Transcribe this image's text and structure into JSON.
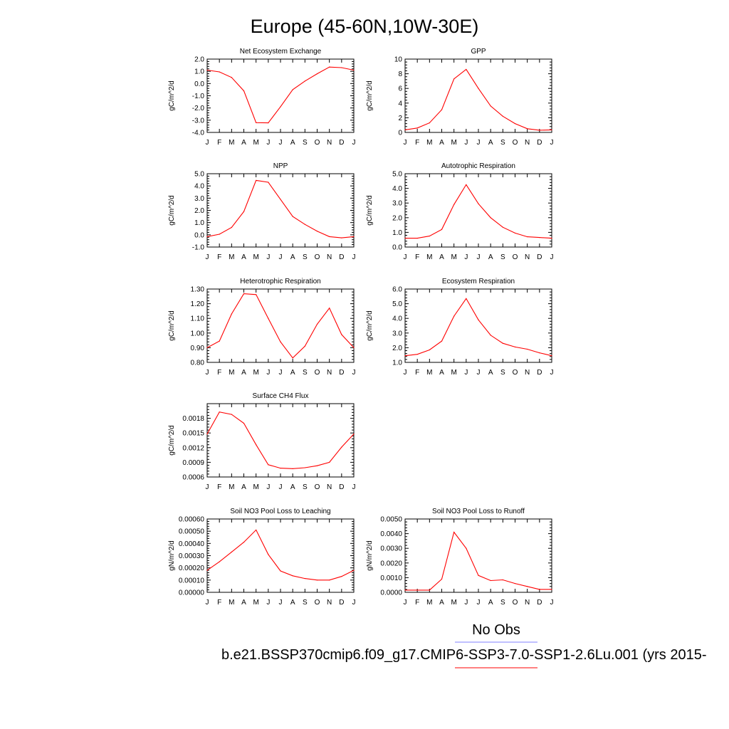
{
  "title": "Europe (45-60N,10W-30E)",
  "legend": {
    "obs_label": "No Obs",
    "obs_color": "#8080ff",
    "case_label": "b.e21.BSSP370cmip6.f09_g17.CMIP6-SSP3-7.0-SSP1-2.6Lu.001 (yrs 2015-",
    "case_color": "#ff0000"
  },
  "colors": {
    "series": "#ff0000",
    "axis": "#000000"
  },
  "chart_data": [
    {
      "type": "line",
      "title": "Net Ecosystem Exchange",
      "ylabel": "gC/m^2/d",
      "categories": [
        "J",
        "F",
        "M",
        "A",
        "M",
        "J",
        "J",
        "A",
        "S",
        "O",
        "N",
        "D",
        "J"
      ],
      "values": [
        1.1,
        0.95,
        0.5,
        -0.6,
        -3.2,
        -3.22,
        -1.9,
        -0.5,
        0.2,
        0.8,
        1.35,
        1.3,
        1.1
      ],
      "ylim": [
        -4.0,
        2.0
      ],
      "yticks": [
        "2.0",
        "1.0",
        "0.0",
        "-1.0",
        "-2.0",
        "-3.0",
        "-4.0"
      ]
    },
    {
      "type": "line",
      "title": "GPP",
      "ylabel": "gC/m^2/d",
      "categories": [
        "J",
        "F",
        "M",
        "A",
        "M",
        "J",
        "J",
        "A",
        "S",
        "O",
        "N",
        "D",
        "J"
      ],
      "values": [
        0.35,
        0.6,
        1.3,
        3.1,
        7.3,
        8.6,
        6.0,
        3.6,
        2.2,
        1.2,
        0.5,
        0.3,
        0.35
      ],
      "ylim": [
        0,
        10
      ],
      "yticks": [
        "10",
        "8",
        "6",
        "4",
        "2",
        "0"
      ]
    },
    {
      "type": "line",
      "title": "NPP",
      "ylabel": "gC/m^2/d",
      "categories": [
        "J",
        "F",
        "M",
        "A",
        "M",
        "J",
        "J",
        "A",
        "S",
        "O",
        "N",
        "D",
        "J"
      ],
      "values": [
        -0.15,
        0.05,
        0.6,
        1.9,
        4.45,
        4.3,
        2.9,
        1.5,
        0.85,
        0.3,
        -0.15,
        -0.25,
        -0.15
      ],
      "ylim": [
        -1.0,
        5.0
      ],
      "yticks": [
        "5.0",
        "4.0",
        "3.0",
        "2.0",
        "1.0",
        "0.0",
        "-1.0"
      ]
    },
    {
      "type": "line",
      "title": "Autotrophic Respiration",
      "ylabel": "gC/m^2/d",
      "categories": [
        "J",
        "F",
        "M",
        "A",
        "M",
        "J",
        "J",
        "A",
        "S",
        "O",
        "N",
        "D",
        "J"
      ],
      "values": [
        0.6,
        0.6,
        0.75,
        1.2,
        2.9,
        4.25,
        2.95,
        2.0,
        1.35,
        0.95,
        0.7,
        0.65,
        0.6
      ],
      "ylim": [
        0,
        5
      ],
      "yticks": [
        "5.0",
        "4.0",
        "3.0",
        "2.0",
        "1.0",
        "0.0"
      ]
    },
    {
      "type": "line",
      "title": "Heterotrophic Respiration",
      "ylabel": "gC/m^2/d",
      "categories": [
        "J",
        "F",
        "M",
        "A",
        "M",
        "J",
        "J",
        "A",
        "S",
        "O",
        "N",
        "D",
        "J"
      ],
      "values": [
        0.9,
        0.945,
        1.13,
        1.268,
        1.262,
        1.1,
        0.94,
        0.83,
        0.91,
        1.06,
        1.17,
        0.99,
        0.9
      ],
      "ylim": [
        0.8,
        1.3
      ],
      "yticks": [
        "1.30",
        "1.20",
        "1.10",
        "1.00",
        "0.90",
        "0.80"
      ]
    },
    {
      "type": "line",
      "title": "Ecosystem Respiration",
      "ylabel": "gC/m^2/d",
      "categories": [
        "J",
        "F",
        "M",
        "A",
        "M",
        "J",
        "J",
        "A",
        "S",
        "O",
        "N",
        "D",
        "J"
      ],
      "values": [
        1.45,
        1.55,
        1.85,
        2.45,
        4.15,
        5.35,
        3.9,
        2.85,
        2.3,
        2.05,
        1.9,
        1.65,
        1.45
      ],
      "ylim": [
        1.0,
        6.0
      ],
      "yticks": [
        "6.0",
        "5.0",
        "4.0",
        "3.0",
        "2.0",
        "1.0"
      ]
    },
    {
      "type": "line",
      "title": "Surface CH4 Flux",
      "ylabel": "gC/m^2/d",
      "categories": [
        "J",
        "F",
        "M",
        "A",
        "M",
        "J",
        "J",
        "A",
        "S",
        "O",
        "N",
        "D",
        "J"
      ],
      "values": [
        0.00148,
        0.00193,
        0.00188,
        0.0017,
        0.00126,
        0.00085,
        0.00078,
        0.00077,
        0.00079,
        0.00083,
        0.0009,
        0.00121,
        0.00148
      ],
      "ylim": [
        0.0006,
        0.0021
      ],
      "yticks": [
        "0.0018",
        "0.0015",
        "0.0012",
        "0.0009",
        "0.0006"
      ]
    },
    {
      "type": "line",
      "title": "Soil NO3 Pool Loss to Leaching",
      "ylabel": "gN/m^2/d",
      "categories": [
        "J",
        "F",
        "M",
        "A",
        "M",
        "J",
        "J",
        "A",
        "S",
        "O",
        "N",
        "D",
        "J"
      ],
      "values": [
        0.00018,
        0.00025,
        0.00033,
        0.00041,
        0.00051,
        0.00031,
        0.000175,
        0.000135,
        0.000113,
        0.0001,
        0.0001,
        0.00013,
        0.00018
      ],
      "ylim": [
        0,
        0.0006
      ],
      "yticks": [
        "0.00060",
        "0.00050",
        "0.00040",
        "0.00030",
        "0.00020",
        "0.00010",
        "0.00000"
      ]
    },
    {
      "type": "line",
      "title": "Soil NO3 Pool Loss to Runoff",
      "ylabel": "gN/m^2/d",
      "categories": [
        "J",
        "F",
        "M",
        "A",
        "M",
        "J",
        "J",
        "A",
        "S",
        "O",
        "N",
        "D",
        "J"
      ],
      "values": [
        0.00015,
        0.00015,
        0.00015,
        0.0009,
        0.0041,
        0.003,
        0.00115,
        0.0008,
        0.00085,
        0.0006,
        0.0004,
        0.0002,
        0.0002
      ],
      "ylim": [
        0,
        0.005
      ],
      "yticks": [
        "0.0050",
        "0.0040",
        "0.0030",
        "0.0020",
        "0.0010",
        "0.0000"
      ]
    }
  ]
}
